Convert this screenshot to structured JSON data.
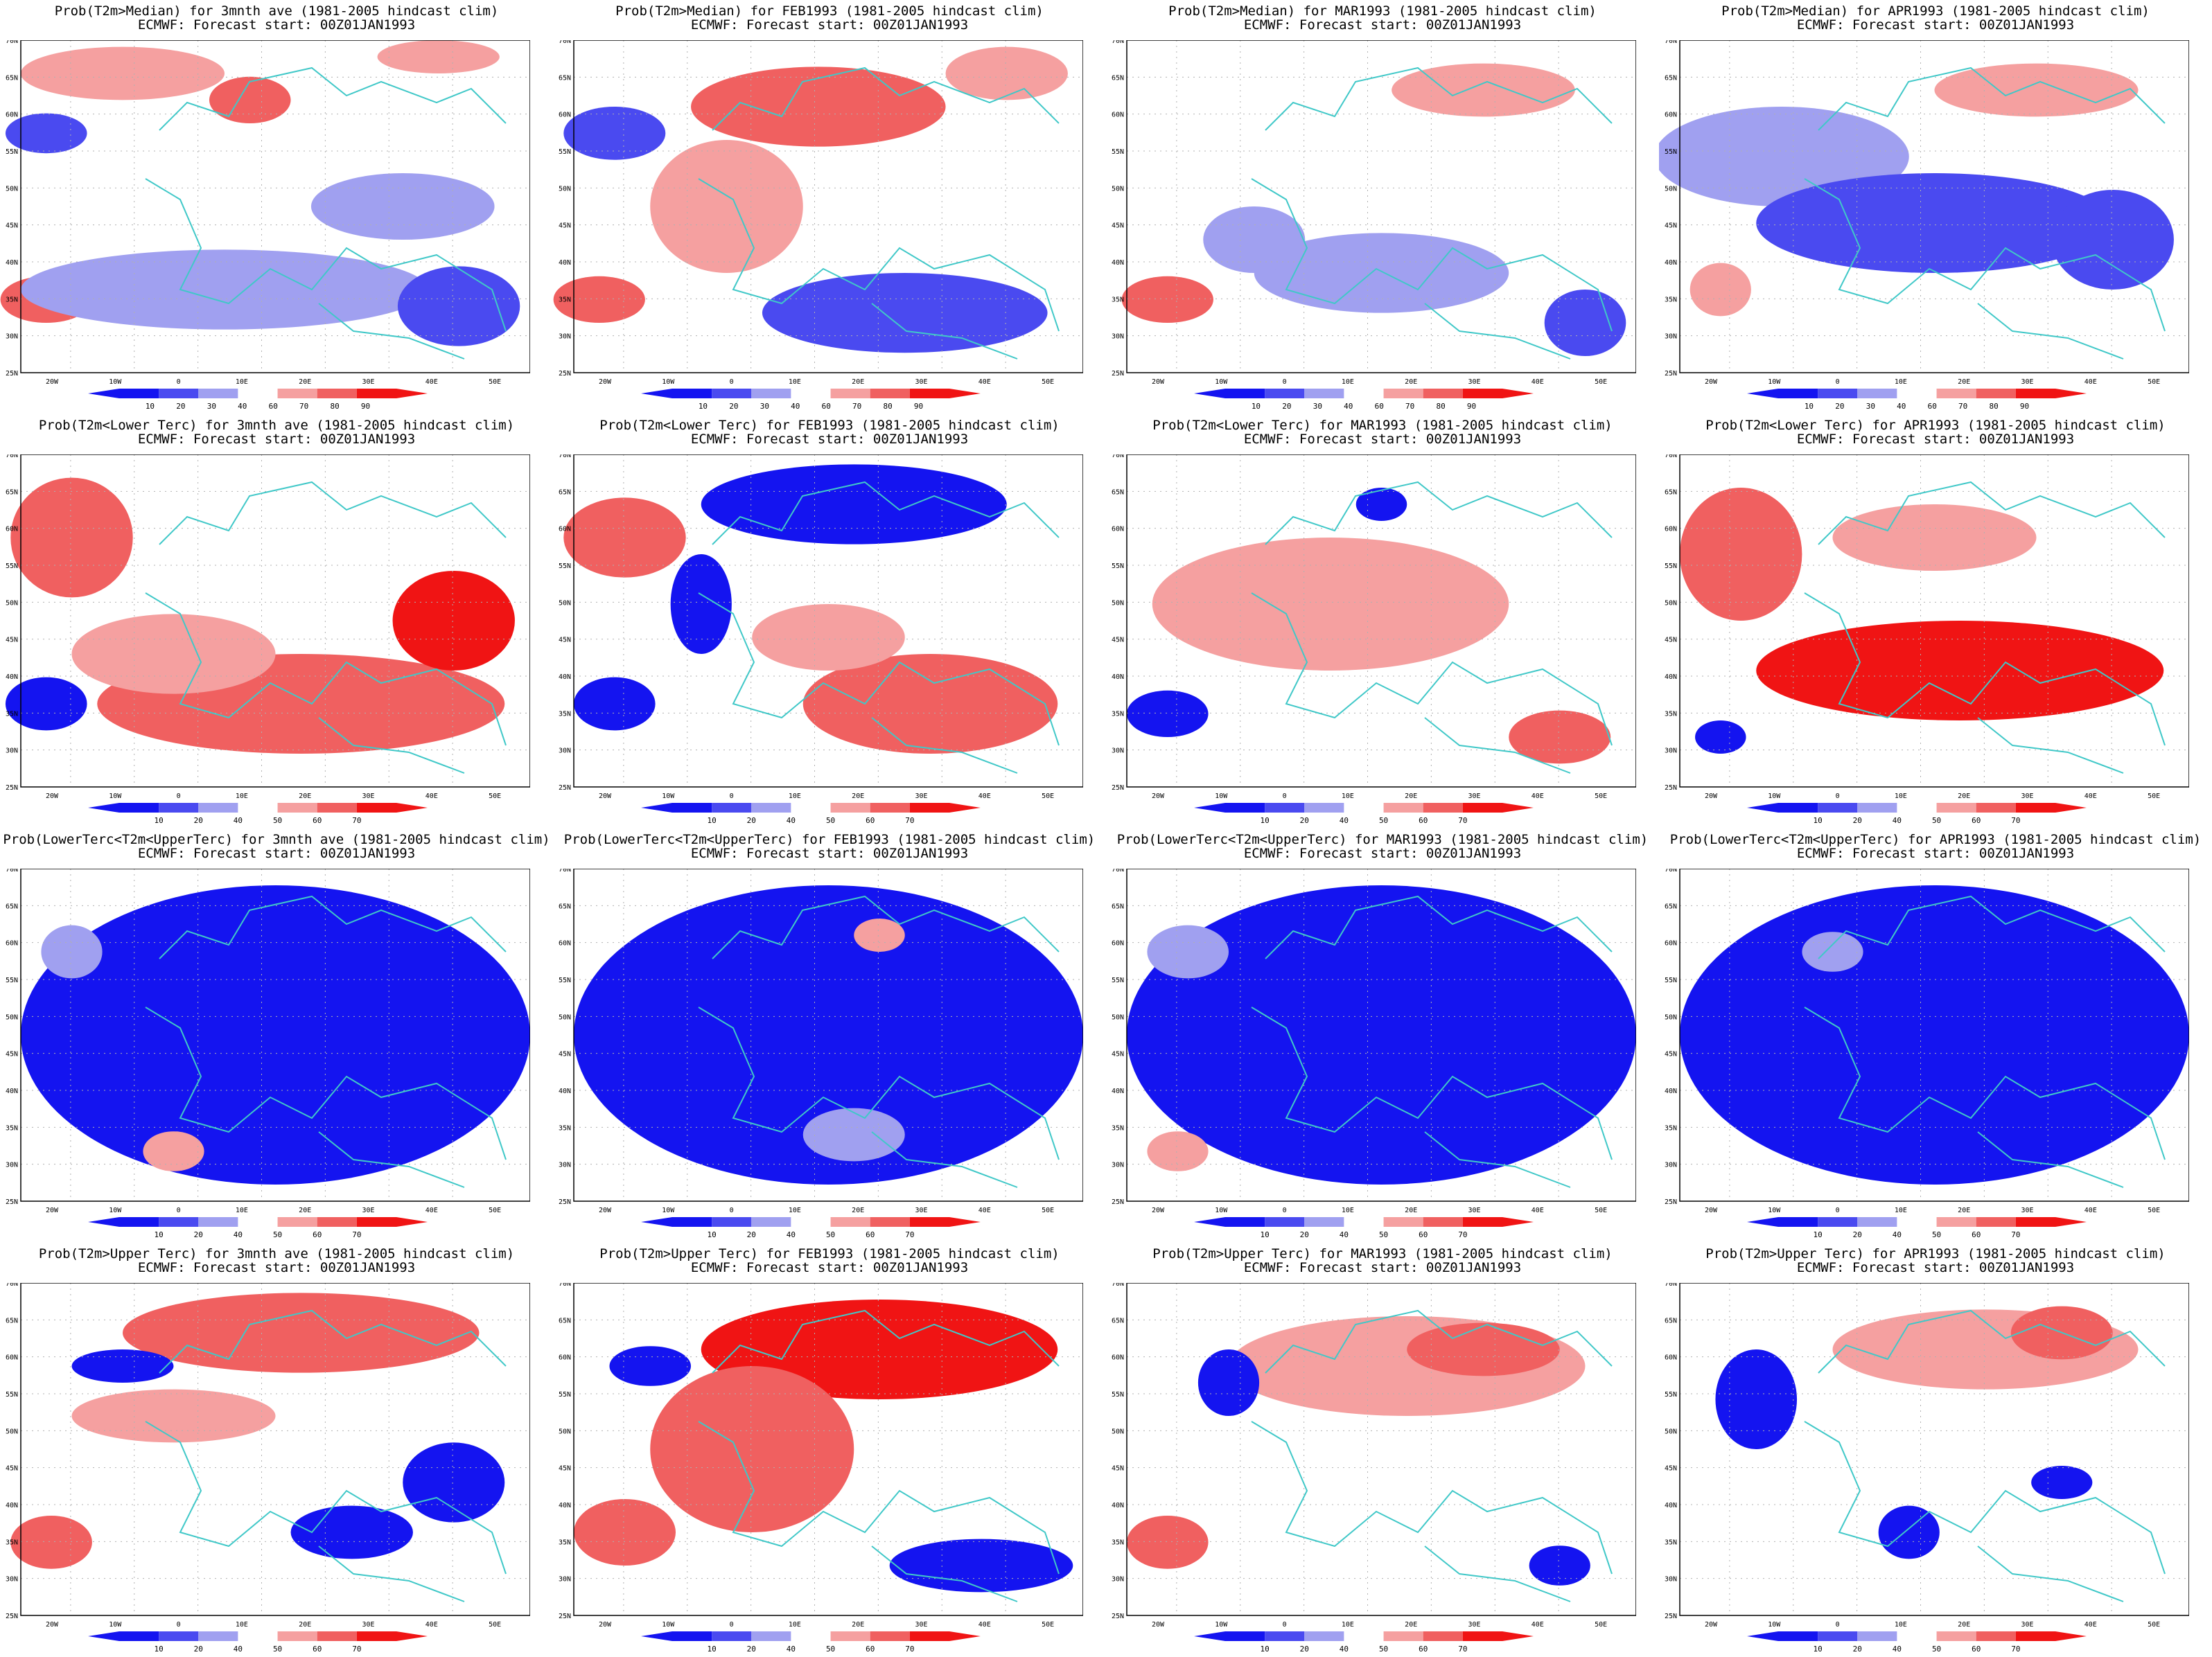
{
  "figure": {
    "start_label": "ECMWF: Forecast start: 00Z01JAN1993",
    "lat_ticks": [
      "70N",
      "65N",
      "60N",
      "55N",
      "50N",
      "45N",
      "40N",
      "35N",
      "30N",
      "25N"
    ],
    "lon_ticks": [
      "20W",
      "10W",
      "0",
      "10E",
      "20E",
      "30E",
      "40E",
      "50E"
    ],
    "rows": [
      {
        "colorbar": [
          "10",
          "20",
          "30",
          "40",
          "60",
          "70",
          "80",
          "90"
        ],
        "panels": [
          {
            "title": "Prob(T2m>Median) for 3mnth ave (1981-2005 hindcast clim)"
          },
          {
            "title": "Prob(T2m>Median) for FEB1993 (1981-2005 hindcast clim)"
          },
          {
            "title": "Prob(T2m>Median) for MAR1993 (1981-2005 hindcast clim)"
          },
          {
            "title": "Prob(T2m>Median) for APR1993 (1981-2005 hindcast clim)"
          }
        ]
      },
      {
        "colorbar": [
          "10",
          "20",
          "40",
          "50",
          "60",
          "70"
        ],
        "panels": [
          {
            "title": "Prob(T2m<Lower Terc) for 3mnth ave (1981-2005 hindcast clim)"
          },
          {
            "title": "Prob(T2m<Lower Terc) for FEB1993 (1981-2005 hindcast clim)"
          },
          {
            "title": "Prob(T2m<Lower Terc) for MAR1993 (1981-2005 hindcast clim)"
          },
          {
            "title": "Prob(T2m<Lower Terc) for APR1993 (1981-2005 hindcast clim)"
          }
        ]
      },
      {
        "colorbar": [
          "10",
          "20",
          "40",
          "50",
          "60",
          "70"
        ],
        "panels": [
          {
            "title": "Prob(LowerTerc<T2m<UpperTerc) for 3mnth ave (1981-2005 hindcast clim)"
          },
          {
            "title": "Prob(LowerTerc<T2m<UpperTerc) for FEB1993 (1981-2005 hindcast clim)"
          },
          {
            "title": "Prob(LowerTerc<T2m<UpperTerc) for MAR1993 (1981-2005 hindcast clim)"
          },
          {
            "title": "Prob(LowerTerc<T2m<UpperTerc) for APR1993 (1981-2005 hindcast clim)"
          }
        ]
      },
      {
        "colorbar": [
          "10",
          "20",
          "40",
          "50",
          "60",
          "70"
        ],
        "panels": [
          {
            "title": "Prob(T2m>Upper Terc) for 3mnth ave (1981-2005 hindcast clim)"
          },
          {
            "title": "Prob(T2m>Upper Terc) for FEB1993 (1981-2005 hindcast clim)"
          },
          {
            "title": "Prob(T2m>Upper Terc) for MAR1993 (1981-2005 hindcast clim)"
          },
          {
            "title": "Prob(T2m>Upper Terc) for APR1993 (1981-2005 hindcast clim)"
          }
        ]
      }
    ],
    "colors": {
      "blue_strong": "#1414f0",
      "blue_mid": "#4a4af0",
      "blue_light": "#a0a0f0",
      "red_light": "#f5a0a0",
      "red_mid": "#f06060",
      "red_strong": "#f01414",
      "coast": "#40c8c8",
      "grid": "#b0b0b0"
    }
  }
}
